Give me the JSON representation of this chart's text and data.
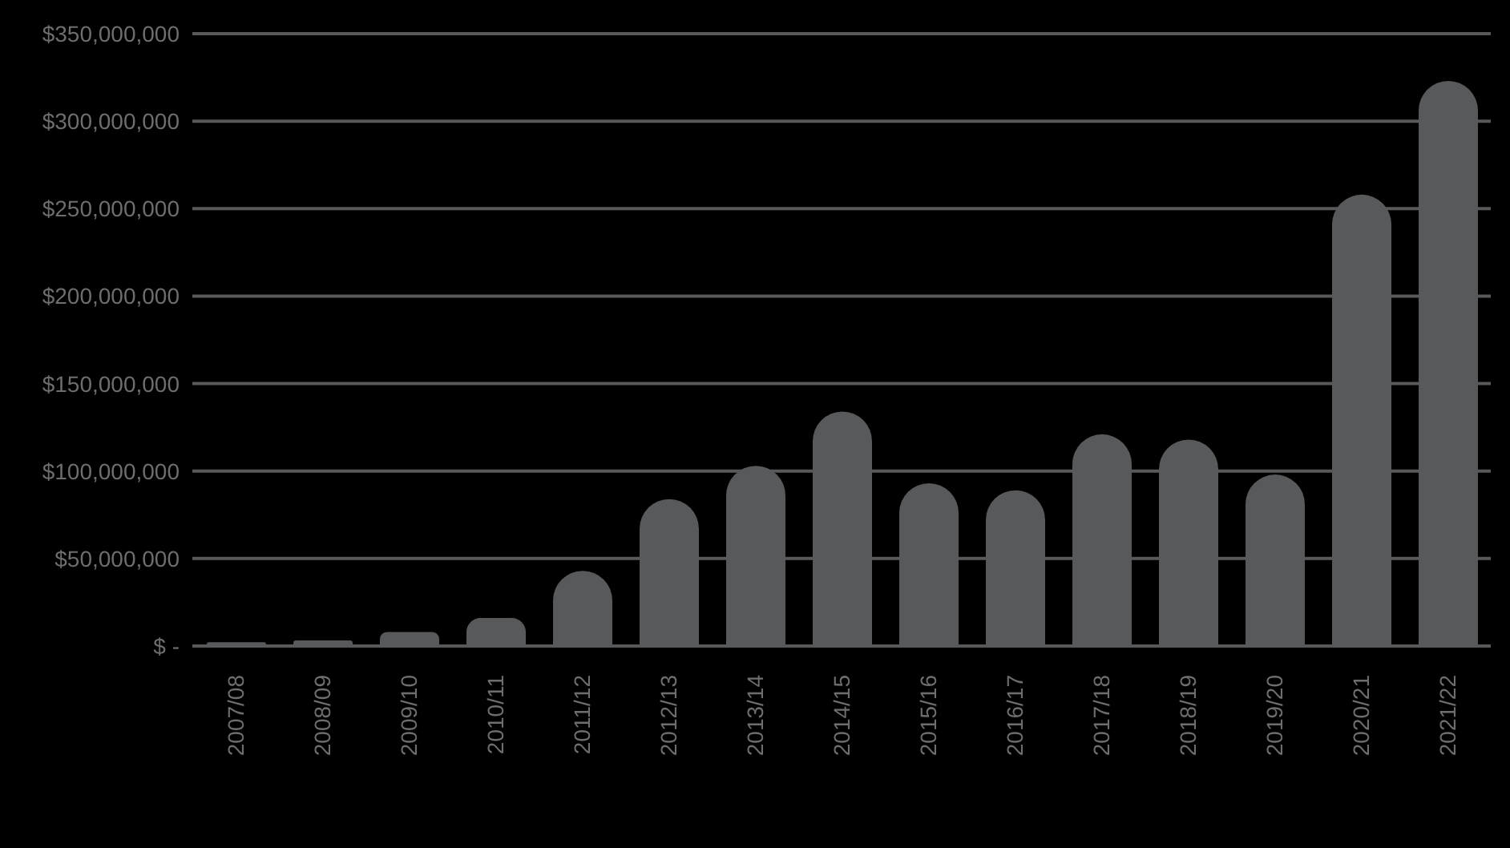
{
  "chart_data": {
    "type": "bar",
    "categories": [
      "2007/08",
      "2008/09",
      "2009/10",
      "2010/11",
      "2011/12",
      "2012/13",
      "2013/14",
      "2014/15",
      "2015/16",
      "2016/17",
      "2017/18",
      "2018/19",
      "2019/20",
      "2020/21",
      "2021/22"
    ],
    "values": [
      2200000,
      3200000,
      8000000,
      16000000,
      43000000,
      84000000,
      103000000,
      134000000,
      93000000,
      89000000,
      121000000,
      118000000,
      98000000,
      258000000,
      323000000
    ],
    "color": "#58595b",
    "ylim": [
      0,
      350000000
    ],
    "yticks": [
      {
        "value": 0,
        "label": "$ -"
      },
      {
        "value": 50000000,
        "label": "$50,000,000"
      },
      {
        "value": 100000000,
        "label": "$100,000,000"
      },
      {
        "value": 150000000,
        "label": "$150,000,000"
      },
      {
        "value": 200000000,
        "label": "$200,000,000"
      },
      {
        "value": 250000000,
        "label": "$250,000,000"
      },
      {
        "value": 300000000,
        "label": "$300,000,000"
      },
      {
        "value": 350000000,
        "label": "$350,000,000"
      }
    ],
    "grid": "y"
  }
}
